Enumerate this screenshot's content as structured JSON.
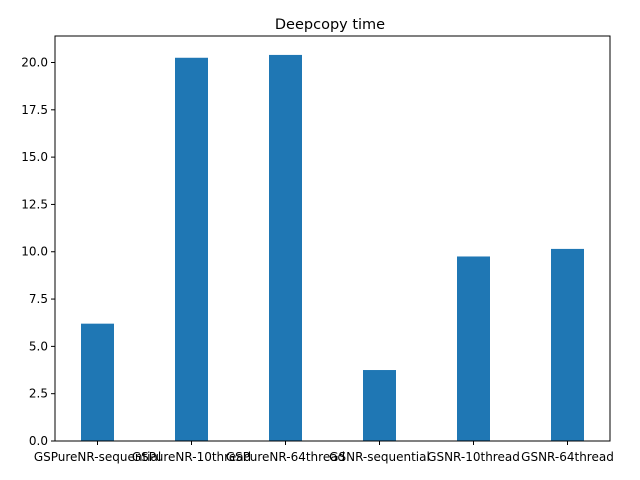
{
  "chart_data": {
    "type": "bar",
    "title": "Deepcopy time",
    "xlabel": "",
    "ylabel": "",
    "categories": [
      "GSPureNR-sequential",
      "GSPureNR-10thread",
      "GSPureNR-64thread",
      "GSNR-sequential",
      "GSNR-10thread",
      "GSNR-64thread"
    ],
    "values": [
      6.2,
      20.25,
      20.4,
      3.75,
      9.75,
      10.15
    ],
    "ylim": [
      0,
      21.4
    ],
    "yticks": [
      0.0,
      2.5,
      5.0,
      7.5,
      10.0,
      12.5,
      15.0,
      17.5,
      20.0
    ],
    "ytick_labels": [
      "0.0",
      "2.5",
      "5.0",
      "7.5",
      "10.0",
      "12.5",
      "15.0",
      "17.5",
      "20.0"
    ],
    "grid": false,
    "legend": "none",
    "bar_color": "#1f77b4"
  }
}
